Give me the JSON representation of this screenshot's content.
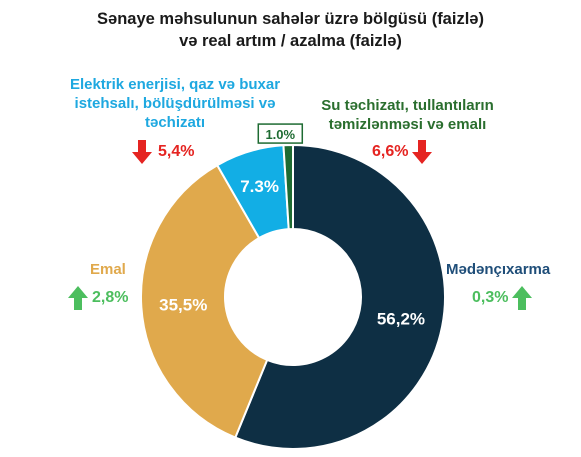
{
  "title": {
    "line1": "Sənaye məhsulunun sahələr üzrə bölgüsü (faizlə)",
    "line2": "və real artım / azalma (faizlə)"
  },
  "colors": {
    "up": "#4cbe5e",
    "down": "#e52421",
    "title_text": "#1a1a1a"
  },
  "chart_data": {
    "type": "pie",
    "variant": "donut",
    "title": "Sənaye məhsulunun sahələr üzrə bölgüsü (faizlə) və real artım / azalma (faizlə)",
    "unit": "%",
    "slices": [
      {
        "name": "Mədənçıxarma",
        "share": 56.2,
        "share_label": "56,2%",
        "color": "#0e2f44",
        "label_color": "#1f4e79",
        "label_lines": [
          "Mədənçıxarma"
        ],
        "change": 0.3,
        "change_label": "0,3%",
        "direction": "up"
      },
      {
        "name": "Emal",
        "share": 35.5,
        "share_label": "35,5%",
        "color": "#e0a94c",
        "label_color": "#e0a94c",
        "label_lines": [
          "Emal"
        ],
        "change": 2.8,
        "change_label": "2,8%",
        "direction": "up"
      },
      {
        "name": "Elektrik enerjisi, qaz və buxar istehsalı, bölüşdürülməsi və təchizatı",
        "share": 7.3,
        "share_label": "7.3%",
        "color": "#12aee5",
        "label_color": "#1ea8e0",
        "label_lines": [
          "Elektrik enerjisi, qaz və buxar",
          "istehsalı, bölüşdürülməsi və",
          "təchizatı"
        ],
        "change": -5.4,
        "change_label": "5,4%",
        "direction": "down"
      },
      {
        "name": "Su təchizatı, tullantıların təmizlənməsi və emalı",
        "share": 1.0,
        "share_label": "1.0%",
        "color": "#1e6b32",
        "label_color": "#2a6e2e",
        "label_lines": [
          "Su təchizatı, tullantıların",
          "təmizlənməsi və emalı"
        ],
        "change": -6.6,
        "change_label": "6,6%",
        "direction": "down"
      }
    ]
  }
}
